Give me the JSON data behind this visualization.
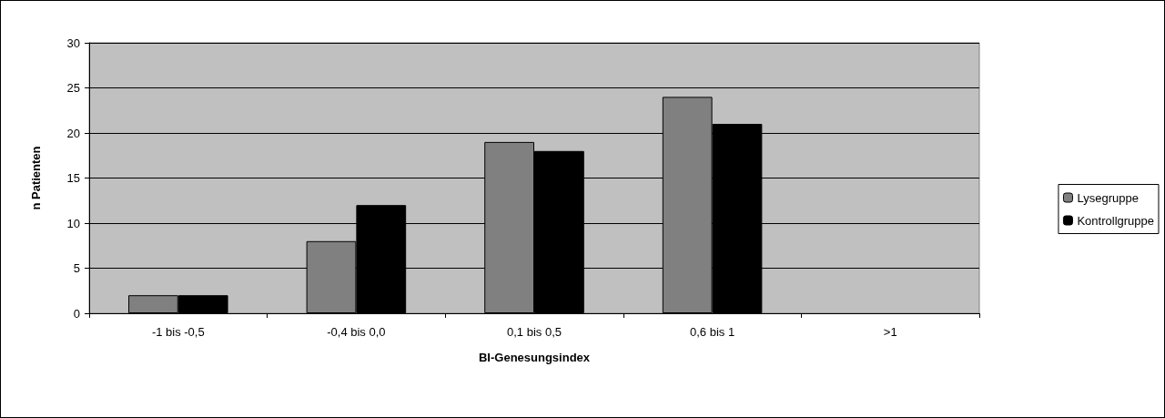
{
  "chart_data": {
    "type": "bar",
    "xlabel": "BI-Genesungsindex",
    "ylabel": "n Patienten",
    "categories": [
      "-1 bis -0,5",
      "-0,4 bis 0,0",
      "0,1 bis 0,5",
      "0,6 bis 1",
      ">1"
    ],
    "series": [
      {
        "name": "Lysegruppe",
        "color": "#808080",
        "values": [
          2,
          8,
          19,
          24,
          null
        ]
      },
      {
        "name": "Kontrollgruppe",
        "color": "#000000",
        "values": [
          2,
          12,
          18,
          21,
          null
        ]
      }
    ],
    "ylim": [
      0,
      30
    ],
    "yticks": [
      0,
      5,
      10,
      15,
      20,
      25,
      30
    ],
    "grid": "y",
    "legend": "right"
  }
}
